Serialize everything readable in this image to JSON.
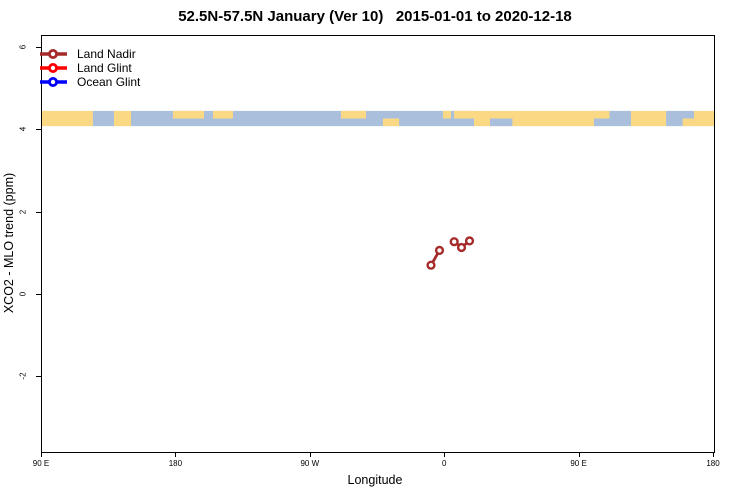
{
  "title": "52.5N-57.5N January (Ver 10)   2015-01-01 to 2020-12-18",
  "axes": {
    "x_label": "Longitude",
    "y_label": "XCO2 - MLO trend (ppm)",
    "x_ticks": [
      {
        "lon": -270,
        "label": "90 E"
      },
      {
        "lon": -180,
        "label": "180"
      },
      {
        "lon": -90,
        "label": "90 W"
      },
      {
        "lon": 0,
        "label": "0"
      },
      {
        "lon": 90,
        "label": "90 E"
      },
      {
        "lon": 180,
        "label": "180"
      }
    ],
    "y_ticks": [
      {
        "value": 6,
        "label": "6"
      },
      {
        "value": 4,
        "label": "4"
      },
      {
        "value": 2,
        "label": "2"
      },
      {
        "value": 0,
        "label": "0"
      },
      {
        "value": -2,
        "label": "-2"
      }
    ]
  },
  "legend": {
    "items": [
      {
        "label": "Land Nadir",
        "color": "#A52A2A"
      },
      {
        "label": "Land Glint",
        "color": "#FF0000"
      },
      {
        "label": "Ocean Glint",
        "color": "#0000FF"
      }
    ]
  },
  "colors": {
    "land": "#FAD884",
    "ocean": "#A9BFDC",
    "plot_border": "#000000",
    "text": "#000000"
  },
  "chart_data": {
    "type": "line",
    "title": "52.5N-57.5N January (Ver 10)   2015-01-01 to 2020-12-18",
    "xlabel": "Longitude",
    "ylabel": "XCO2 - MLO trend (ppm)",
    "xlim": [
      -270,
      180
    ],
    "ylim": [
      -3.82,
      6.29
    ],
    "x_tick_labels": [
      "90 E",
      "180",
      "90 W",
      "0",
      "90 E",
      "180"
    ],
    "grid": false,
    "legend_position": "top-left",
    "series": [
      {
        "name": "Land Nadir",
        "color": "#A52A2A",
        "segments": [
          [
            [
              -9.5,
              0.72
            ],
            [
              -3.8,
              1.08
            ]
          ],
          [
            [
              6.0,
              1.29
            ],
            [
              10.9,
              1.15
            ],
            [
              16.3,
              1.31
            ]
          ]
        ]
      },
      {
        "name": "Land Glint",
        "color": "#FF0000",
        "segments": []
      },
      {
        "name": "Ocean Glint",
        "color": "#0000FF",
        "segments": []
      }
    ],
    "map_strip": {
      "description": "land/ocean map band for 52.5N-57.5N",
      "y_top_value": 4.47,
      "y_bottom_value": 4.1,
      "base_segments": [
        {
          "type": "land",
          "from": -270,
          "to": -235.9
        },
        {
          "type": "ocean",
          "from": -235.9,
          "to": -221.8
        },
        {
          "type": "land",
          "from": -221.8,
          "to": -210.4
        },
        {
          "type": "ocean",
          "from": -210.4,
          "to": 19.3
        },
        {
          "type": "land",
          "from": 19.3,
          "to": 99.6
        },
        {
          "type": "ocean",
          "from": 99.6,
          "to": 124.4
        },
        {
          "type": "land",
          "from": 124.4,
          "to": 147.9
        },
        {
          "type": "ocean",
          "from": 147.9,
          "to": 166.6
        },
        {
          "type": "land",
          "from": 166.6,
          "to": 180
        }
      ],
      "patches": [
        {
          "type": "land",
          "part": "top",
          "from": -182.3,
          "to": -161.5
        },
        {
          "type": "land",
          "part": "top",
          "from": -155.5,
          "to": -142.1
        },
        {
          "type": "land",
          "part": "top",
          "from": -69.8,
          "to": -53.0
        },
        {
          "type": "land",
          "part": "bottom",
          "from": -41.7,
          "to": -30.9
        },
        {
          "type": "land",
          "part": "top",
          "from": -1.5,
          "to": 3.9
        },
        {
          "type": "land",
          "part": "top",
          "from": 5.9,
          "to": 19.3
        },
        {
          "type": "ocean",
          "part": "bottom",
          "from": 30,
          "to": 45
        },
        {
          "type": "land",
          "part": "top",
          "from": 99.6,
          "to": 110
        },
        {
          "type": "land",
          "part": "bottom",
          "from": 159,
          "to": 166.6
        }
      ]
    }
  }
}
